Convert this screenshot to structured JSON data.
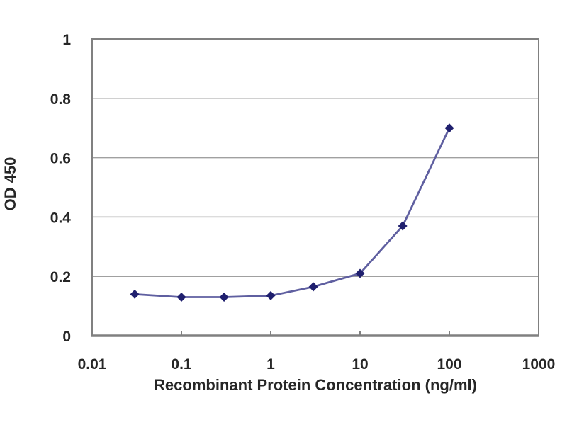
{
  "chart_data": {
    "type": "line",
    "title": "",
    "xlabel": "Recombinant Protein Concentration (ng/ml)",
    "ylabel": "OD 450",
    "x_scale": "log",
    "xlim": [
      0.01,
      1000
    ],
    "ylim": [
      0,
      1
    ],
    "x_tick_labels": [
      "0.01",
      "0.1",
      "1",
      "10",
      "100",
      "1000"
    ],
    "x_tick_values": [
      0.01,
      0.1,
      1,
      10,
      100,
      1000
    ],
    "y_tick_labels": [
      "0",
      "0.2",
      "0.4",
      "0.6",
      "0.8",
      "1"
    ],
    "y_tick_values": [
      0,
      0.2,
      0.4,
      0.6,
      0.8,
      1
    ],
    "gridlines_y": [
      0.2,
      0.4,
      0.6,
      0.8
    ],
    "grid": "horizontal",
    "legend": "none",
    "series": [
      {
        "name": "OD 450",
        "marker": "diamond",
        "x": [
          0.03,
          0.1,
          0.3,
          1,
          3,
          10,
          30,
          100
        ],
        "y": [
          0.14,
          0.13,
          0.13,
          0.135,
          0.165,
          0.21,
          0.37,
          0.7
        ]
      }
    ],
    "colors": {
      "line": "#5f5fa0",
      "marker": "#1f1f6e",
      "grid": "#a0a0a0",
      "frame": "#808080",
      "axis": "#808080",
      "text": "#262626",
      "background": "#ffffff"
    }
  },
  "layout_note": "ELISA-style titration curve"
}
